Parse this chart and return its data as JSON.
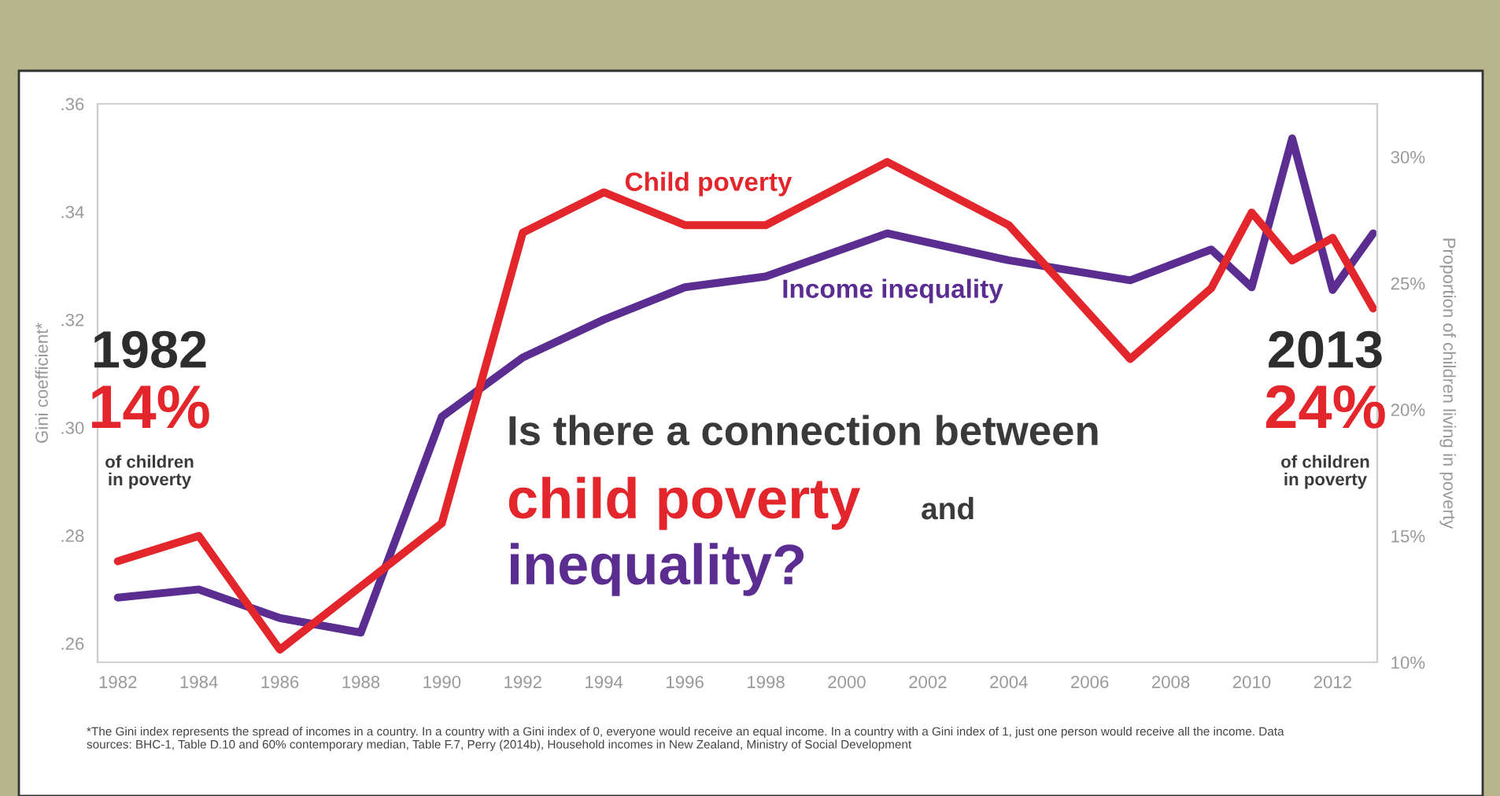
{
  "chart_data": {
    "type": "line",
    "ylabel": "Gini coefficient*",
    "y2label": "Proportion of children living in poverty",
    "x": [
      1982,
      1984,
      1986,
      1988,
      1990,
      1992,
      1994,
      1996,
      1998,
      2001,
      2004,
      2007,
      2009,
      2010,
      2011,
      2012,
      2013
    ],
    "series": [
      {
        "name": "Child poverty",
        "color": "#e3262b",
        "axis": "y2",
        "values": [
          14,
          15,
          10.5,
          13,
          15.5,
          27,
          28.6,
          27.3,
          27.3,
          29.8,
          27.3,
          22,
          24.8,
          27.8,
          25.9,
          26.8,
          24
        ]
      },
      {
        "name": "Income inequality",
        "color": "#5b2d91",
        "values": [
          0.2685,
          0.27,
          0.2647,
          0.262,
          0.302,
          0.313,
          0.32,
          0.326,
          0.328,
          0.336,
          0.331,
          0.3273,
          0.333,
          0.326,
          0.3536,
          0.3255,
          0.336
        ]
      }
    ],
    "xlim": [
      1981.5,
      2013.1
    ],
    "xticks": [
      1982,
      1984,
      1986,
      1988,
      1990,
      1992,
      1994,
      1996,
      1998,
      2000,
      2002,
      2004,
      2006,
      2008,
      2010,
      2012
    ],
    "ylim": [
      0.2565,
      0.36
    ],
    "yticks": [
      {
        "value": 0.26,
        "label": ".26"
      },
      {
        "value": 0.28,
        "label": ".28"
      },
      {
        "value": 0.3,
        "label": ".30"
      },
      {
        "value": 0.32,
        "label": ".32"
      },
      {
        "value": 0.34,
        "label": ".34"
      },
      {
        "value": 0.36,
        "label": ".36"
      }
    ],
    "y2lim": [
      10,
      32.1
    ],
    "y2ticks": [
      {
        "value": 10,
        "label": "10%"
      },
      {
        "value": 15,
        "label": "15%"
      },
      {
        "value": 20,
        "label": "20%"
      },
      {
        "value": 25,
        "label": "25%"
      },
      {
        "value": 30,
        "label": "30%"
      }
    ],
    "grid": false,
    "legend": false,
    "annotations": [
      "Is there a connection between",
      "child poverty",
      "and",
      "inequality?",
      "1982",
      "14%",
      "of children\nin poverty",
      "2013",
      "24%",
      "of children\nin poverty",
      "*The Gini index represents the spread of incomes in a country. In a country with a Gini index of 0, everyone would receive an equal income. In a country with a Gini index of 1, just one person would receive all the income. Data sources: BHC-1, Table D.10 and 60% contemporary median, Table F.7, Perry (2014b), Household incomes in New Zealand, Ministry of Social Development"
    ]
  }
}
